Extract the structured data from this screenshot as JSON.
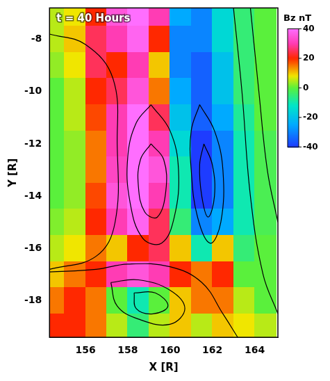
{
  "chart_data": {
    "type": "heatmap",
    "annotations": [
      "t = 40 Hours"
    ],
    "x_label": "X [R]",
    "y_label": "Y [R]",
    "xlim": [
      154.3,
      165.1
    ],
    "ylim": [
      -19.4,
      -6.8
    ],
    "xticks": [
      156,
      158,
      160,
      162,
      164
    ],
    "yticks": [
      -18,
      -16,
      -14,
      -12,
      -10,
      -8
    ],
    "grid": false,
    "cells": {
      "x": [
        154.5,
        155.5,
        156.5,
        157.5,
        158.5,
        159.5,
        160.5,
        161.5,
        162.5,
        163.5,
        164.5
      ],
      "y": [
        -7,
        -8,
        -9,
        -10,
        -11,
        -12,
        -13,
        -14,
        -15,
        -16,
        -17,
        -18,
        -19
      ],
      "values": [
        [
          5,
          8,
          20,
          35,
          40,
          30,
          -25,
          -30,
          -15,
          -5,
          0
        ],
        [
          5,
          10,
          25,
          30,
          38,
          20,
          -30,
          -30,
          -15,
          -5,
          0
        ],
        [
          3,
          8,
          25,
          20,
          30,
          10,
          -30,
          -35,
          -20,
          -5,
          0
        ],
        [
          0,
          5,
          20,
          25,
          35,
          15,
          -25,
          -35,
          -20,
          -5,
          0
        ],
        [
          0,
          5,
          18,
          30,
          40,
          25,
          -20,
          -35,
          -25,
          -8,
          0
        ],
        [
          0,
          3,
          15,
          30,
          40,
          30,
          -15,
          -40,
          -30,
          -10,
          -2
        ],
        [
          0,
          3,
          15,
          32,
          40,
          35,
          -10,
          -40,
          -30,
          -10,
          -2
        ],
        [
          0,
          3,
          18,
          35,
          40,
          30,
          -10,
          -40,
          -30,
          -10,
          -2
        ],
        [
          2,
          5,
          20,
          30,
          38,
          25,
          -5,
          -30,
          -25,
          -10,
          -2
        ],
        [
          5,
          8,
          15,
          10,
          20,
          25,
          10,
          -10,
          10,
          -5,
          0
        ],
        [
          10,
          15,
          20,
          30,
          35,
          30,
          20,
          15,
          20,
          0,
          0
        ],
        [
          15,
          20,
          15,
          0,
          -10,
          0,
          10,
          15,
          15,
          5,
          0
        ],
        [
          20,
          20,
          15,
          5,
          -5,
          5,
          10,
          5,
          10,
          8,
          5
        ]
      ]
    },
    "colorbar": {
      "title": "Bz nT",
      "range": [
        -40,
        40
      ],
      "ticks": [
        40,
        20,
        0,
        -20,
        -40
      ]
    },
    "streamlines": [
      {
        "x": [
          159.1,
          160.0,
          160.4,
          160.2,
          159.6,
          158.7,
          158.1,
          158.0,
          158.4,
          159.1
        ],
        "y": [
          -10.5,
          -11.5,
          -13,
          -14.8,
          -15.8,
          -15.6,
          -14.2,
          -12.5,
          -11.2,
          -10.5
        ]
      },
      {
        "x": [
          159.1,
          159.7,
          159.8,
          159.4,
          158.8,
          158.5,
          158.6,
          159.1
        ],
        "y": [
          -12,
          -12.6,
          -13.8,
          -14.8,
          -14.6,
          -13.6,
          -12.6,
          -12
        ]
      },
      {
        "x": [
          161.4,
          162.1,
          162.5,
          162.4,
          161.9,
          161.3,
          161.0,
          161.0,
          161.4
        ],
        "y": [
          -10.5,
          -11.5,
          -13,
          -15,
          -15.8,
          -14.8,
          -13,
          -11.5,
          -10.5
        ]
      },
      {
        "x": [
          161.6,
          162.0,
          162.1,
          161.8,
          161.5,
          161.4,
          161.6
        ],
        "y": [
          -12,
          -12.8,
          -14,
          -14.8,
          -14,
          -12.8,
          -12
        ]
      },
      {
        "x": [
          157.2,
          158.5,
          160.0,
          160.7,
          160.0,
          158.5,
          157.5,
          157.2
        ],
        "y": [
          -17.3,
          -17.2,
          -17.6,
          -18.3,
          -18.9,
          -18.7,
          -18.2,
          -17.3
        ]
      },
      {
        "x": [
          158.3,
          159.3,
          159.9,
          159.2,
          158.4,
          158.3
        ],
        "y": [
          -17.7,
          -17.7,
          -18.2,
          -18.5,
          -18.3,
          -17.7
        ]
      },
      {
        "x": [
          163.0,
          163.4,
          163.8,
          164.4,
          165.1
        ],
        "y": [
          -6.8,
          -10,
          -14,
          -17,
          -18.5
        ]
      },
      {
        "x": [
          163.8,
          164.2,
          164.6,
          165.1
        ],
        "y": [
          -6.8,
          -10,
          -13,
          -15
        ]
      },
      {
        "x": [
          154.3,
          156.0,
          157.3,
          157.5,
          157.4,
          156.5,
          154.3
        ],
        "y": [
          -7.8,
          -8.2,
          -9.5,
          -12,
          -15,
          -16.3,
          -16.8
        ]
      },
      {
        "x": [
          154.3,
          156.5,
          158.0,
          160.0,
          161.5,
          162.5,
          163.2
        ],
        "y": [
          -16.9,
          -16.8,
          -16.6,
          -16.7,
          -17.3,
          -18.5,
          -19.4
        ]
      }
    ]
  }
}
